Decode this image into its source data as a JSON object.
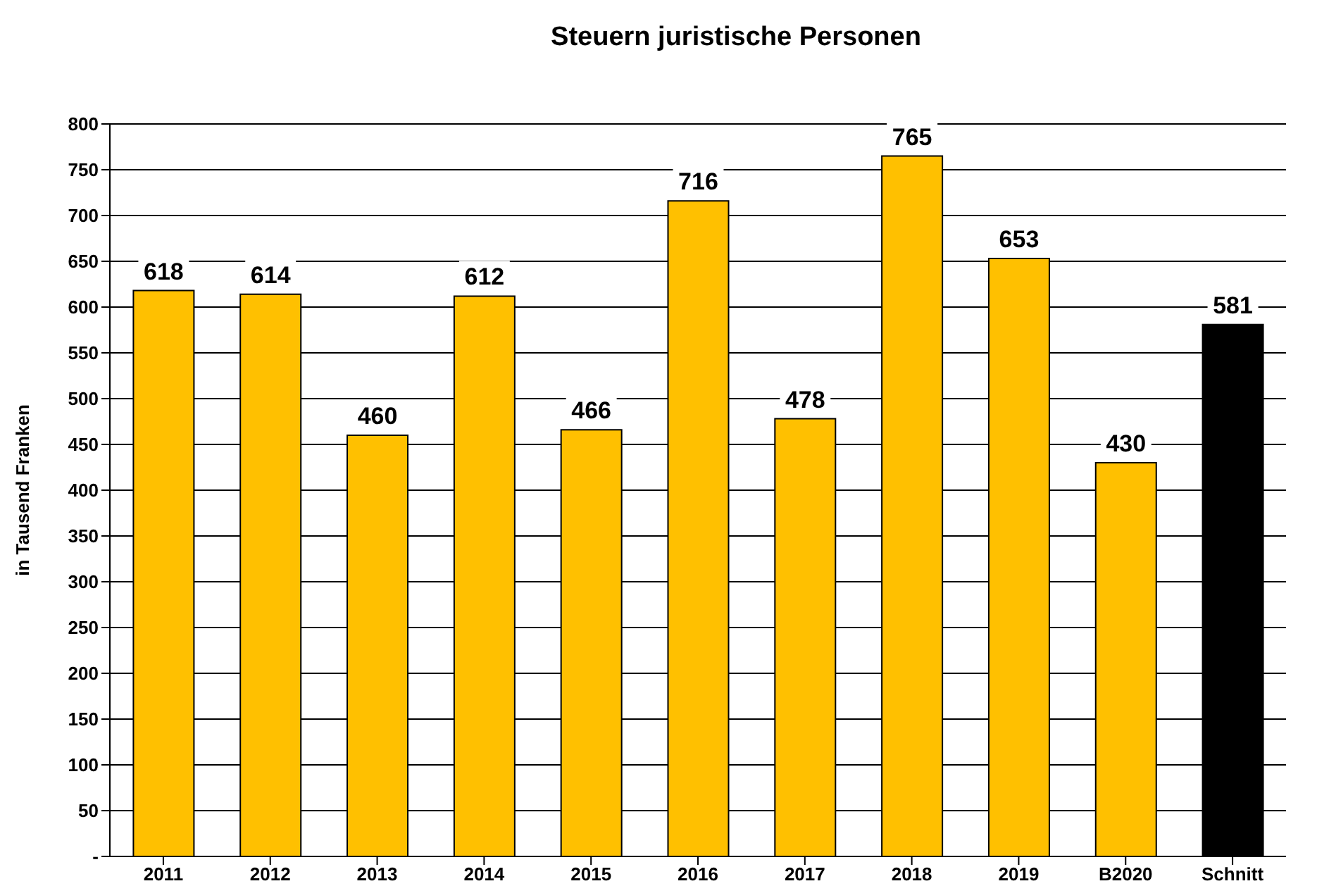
{
  "chart_data": {
    "type": "bar",
    "title": "Steuern juristische Personen",
    "ylabel": "in Tausend Franken",
    "categories": [
      "2011",
      "2012",
      "2013",
      "2014",
      "2015",
      "2016",
      "2017",
      "2018",
      "2019",
      "B2020",
      "Schnitt"
    ],
    "values": [
      618,
      614,
      460,
      612,
      466,
      716,
      478,
      765,
      653,
      430,
      581
    ],
    "colors": [
      "#ffc000",
      "#ffc000",
      "#ffc000",
      "#ffc000",
      "#ffc000",
      "#ffc000",
      "#ffc000",
      "#ffc000",
      "#ffc000",
      "#ffc000",
      "#000000"
    ],
    "ylim": [
      0,
      800
    ],
    "yticks": [
      {
        "value": 0,
        "label": "-"
      },
      50,
      100,
      150,
      200,
      250,
      300,
      350,
      400,
      450,
      500,
      550,
      600,
      650,
      700,
      750,
      800
    ],
    "grid": "y",
    "data_labels": true
  }
}
